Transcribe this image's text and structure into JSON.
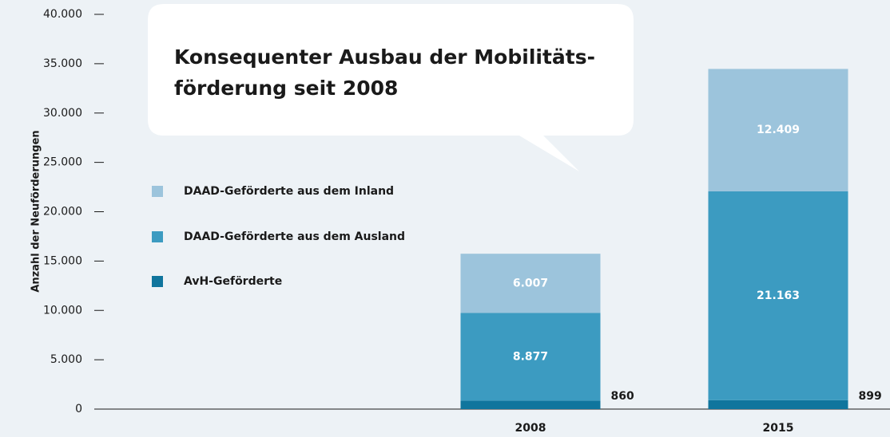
{
  "chart_data": {
    "type": "stacked_bar",
    "title": [
      "Konsequenter Ausbau der Mobilitäts-",
      "förderung seit 2008"
    ],
    "y_label": "Anzahl der Neuförderungen",
    "categories": [
      "2008",
      "2015"
    ],
    "series": [
      {
        "name": "AvH-Geförderte",
        "color": "#10759d",
        "values": [
          860,
          899
        ],
        "value_labels": [
          "860",
          "899"
        ]
      },
      {
        "name": "DAAD-Geförderte aus dem Ausland",
        "color": "#3c9bc1",
        "values": [
          8877,
          21163
        ],
        "value_labels": [
          "8.877",
          "21.163"
        ]
      },
      {
        "name": "DAAD-Geförderte aus dem Inland",
        "color": "#9cc4dc",
        "values": [
          6007,
          12409
        ],
        "value_labels": [
          "6.007",
          "12.409"
        ]
      }
    ],
    "ylim": [
      0,
      40000
    ],
    "yticks": [
      0,
      {
        "value": 5000,
        "label": "5.000"
      },
      {
        "value": 10000,
        "label": "10.000"
      },
      {
        "value": 15000,
        "label": "15.000"
      },
      {
        "value": 20000,
        "label": "20.000"
      },
      {
        "value": 25000,
        "label": "25.000"
      },
      {
        "value": 30000,
        "label": "30.000"
      },
      {
        "value": 35000,
        "label": "35.000"
      },
      {
        "value": 40000,
        "label": "40.000"
      }
    ]
  }
}
